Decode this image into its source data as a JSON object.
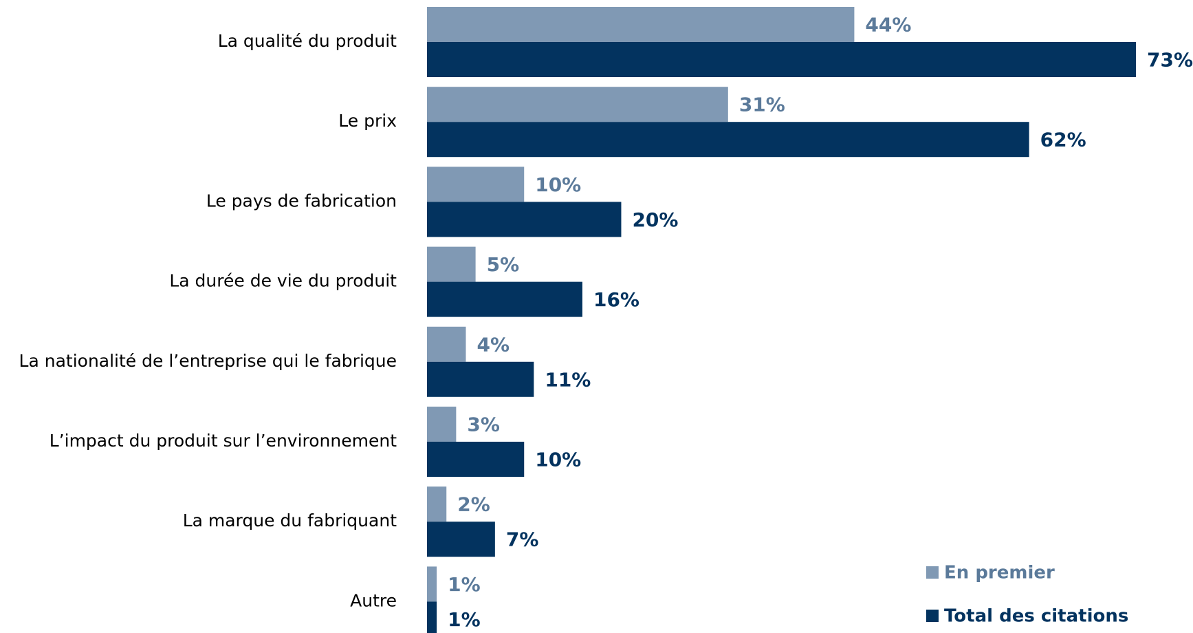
{
  "chart_data": {
    "type": "bar",
    "orientation": "horizontal",
    "categories": [
      "La qualité du produit",
      "Le prix",
      "Le pays de fabrication",
      "La durée de vie du produit",
      "La nationalité de l’entreprise qui le fabrique",
      "L’impact du produit sur l’environnement",
      "La marque du fabriquant",
      "Autre"
    ],
    "series": [
      {
        "name": "En premier",
        "color": "#8099b4",
        "label_color": "#5b7a9a",
        "values": [
          44,
          31,
          10,
          5,
          4,
          3,
          2,
          1
        ],
        "value_labels": [
          "44%",
          "31%",
          "10%",
          "5%",
          "4%",
          "3%",
          "2%",
          "1%"
        ]
      },
      {
        "name": "Total des citations",
        "color": "#03335f",
        "label_color": "#03335f",
        "values": [
          73,
          62,
          20,
          16,
          11,
          10,
          7,
          1
        ],
        "value_labels": [
          "73%",
          "62%",
          "20%",
          "16%",
          "11%",
          "10%",
          "7%",
          "1%"
        ]
      }
    ],
    "legend": "lower right"
  }
}
